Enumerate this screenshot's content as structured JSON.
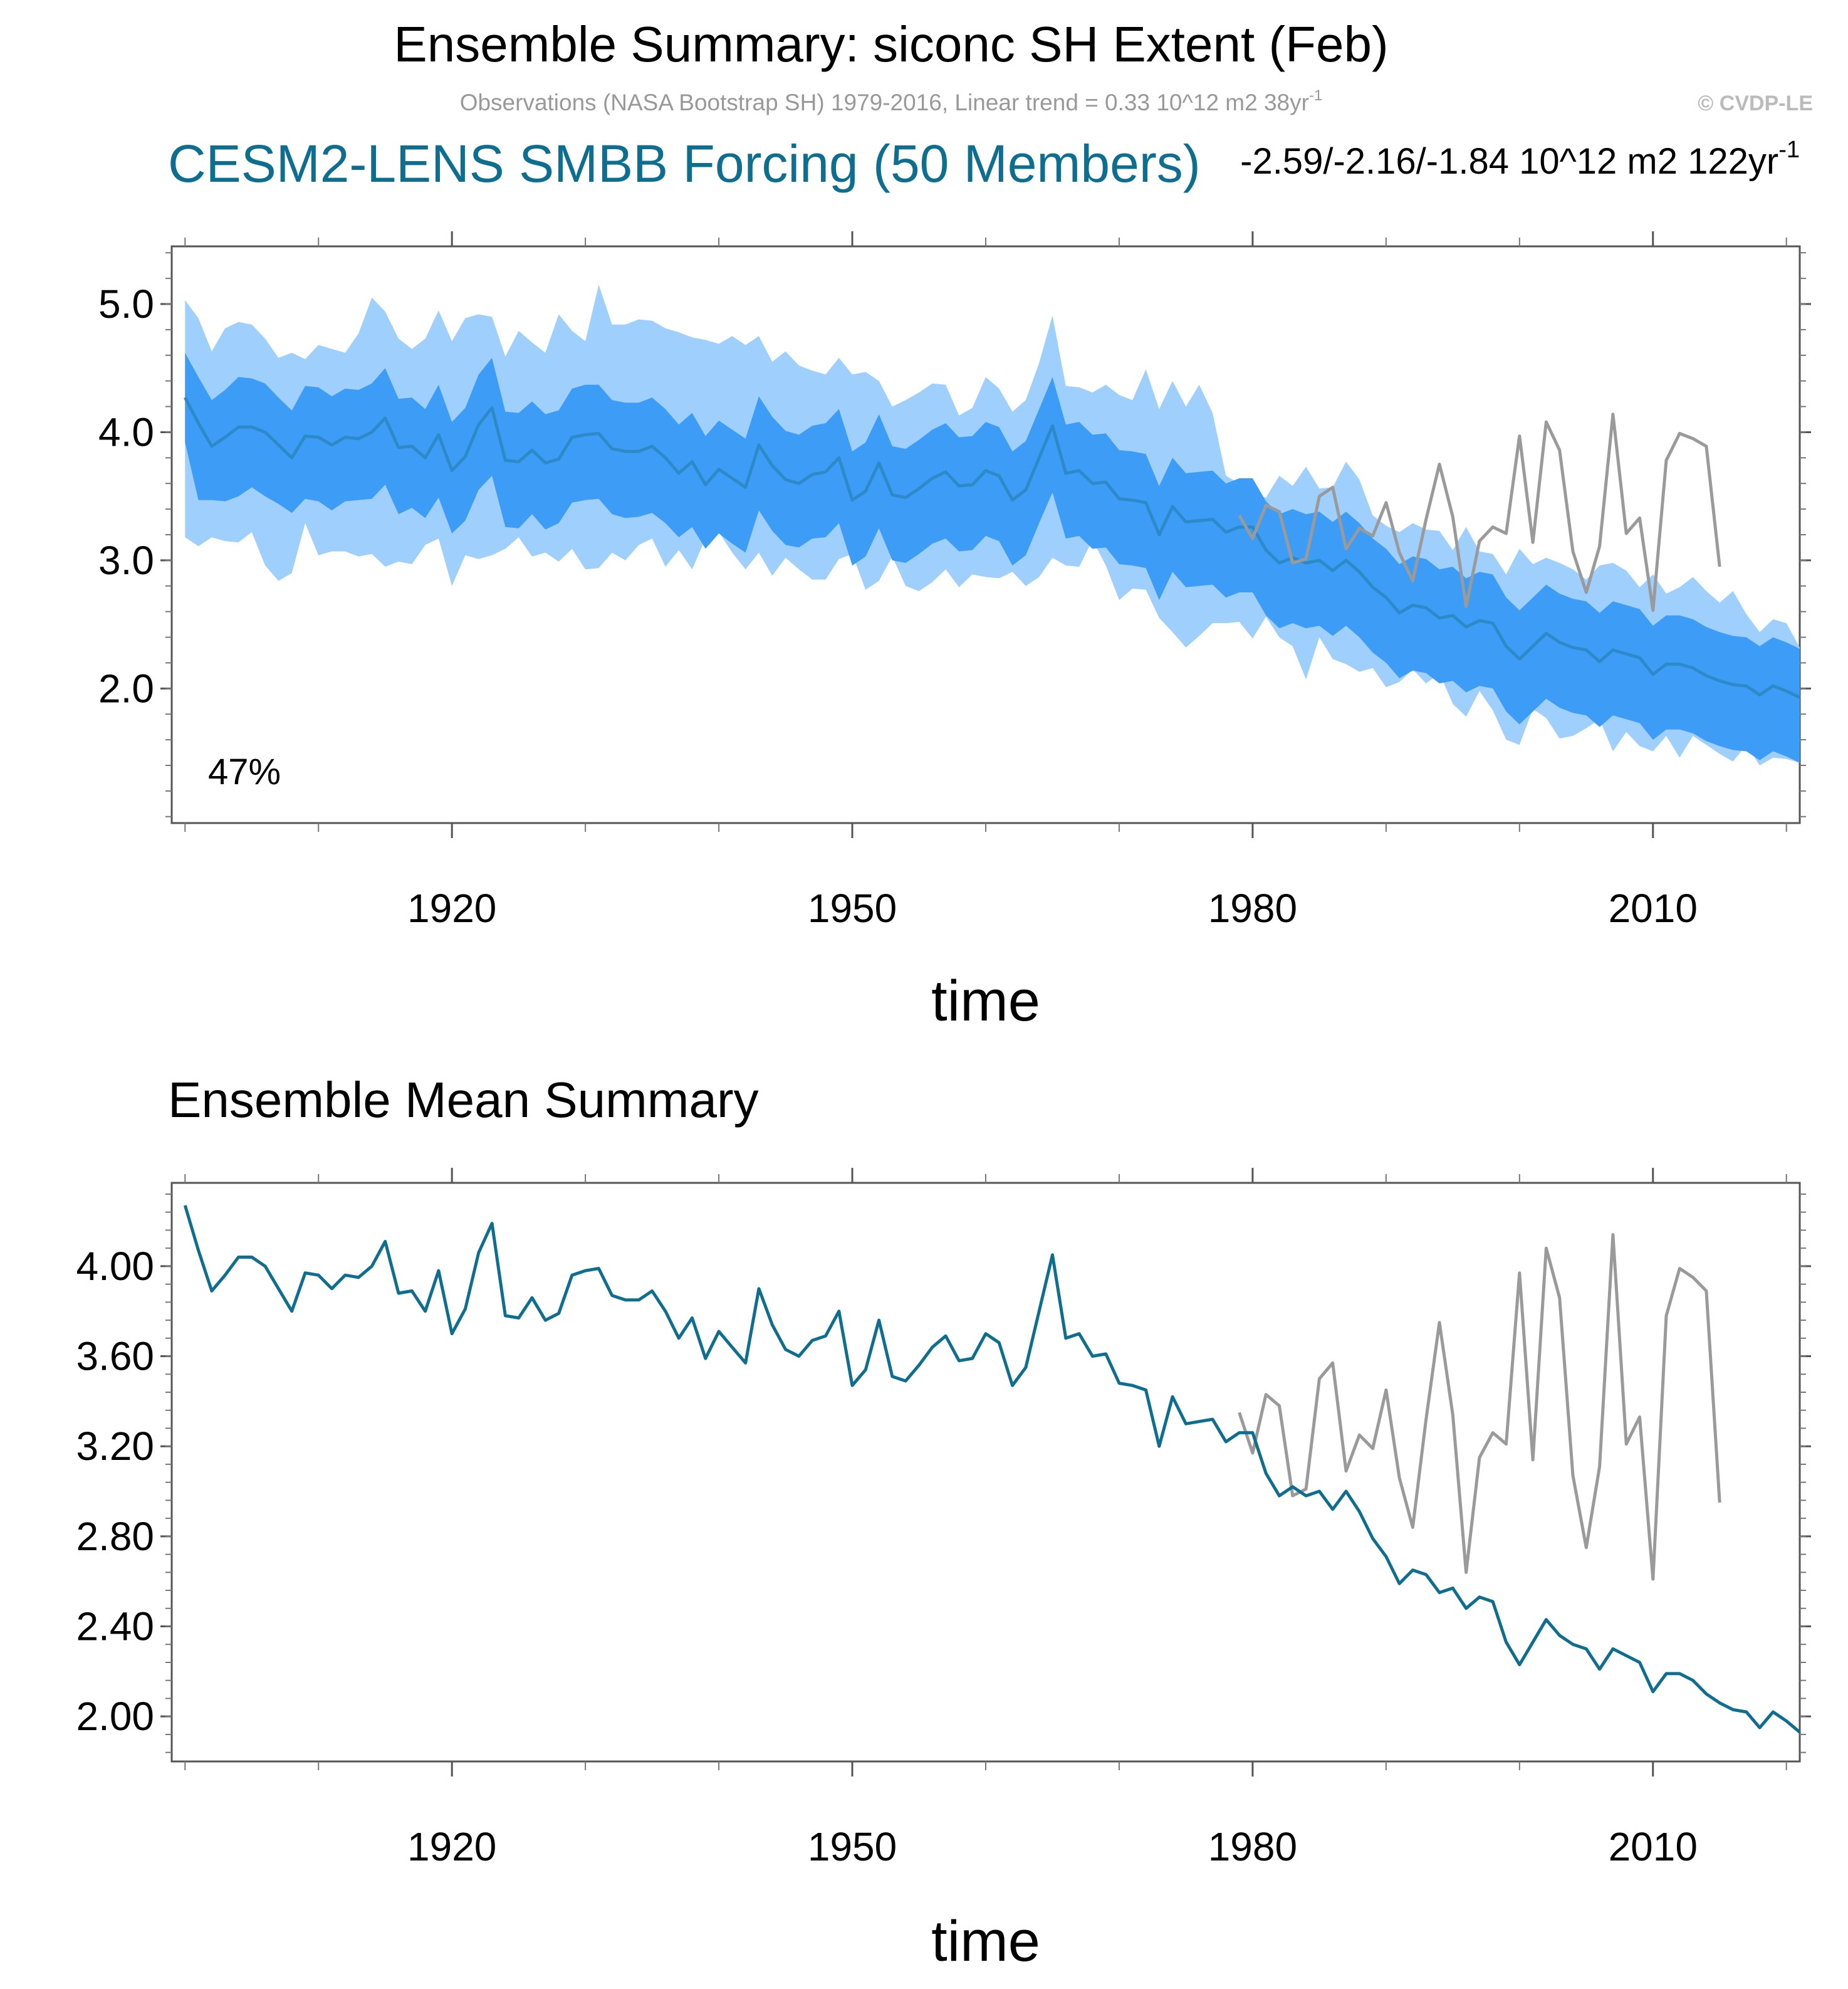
{
  "titles": {
    "main": "Ensemble Summary: siconc SH Extent (Feb)",
    "observations": "Observations (NASA Bootstrap SH) 1979-2016, Linear trend = 0.33 10^12 m2 38yr",
    "observations_sup": "-1",
    "copyright": "© CVDP-LE",
    "model": "CESM2-LENS SMBB Forcing (50 Members)",
    "trend": "-2.59/-2.16/-1.84 10^12 m2 122yr",
    "trend_sup": "-1",
    "lower": "Ensemble Mean Summary"
  },
  "colors": {
    "outer_band": "#9fcffc",
    "inner_band": "#3d9cf5",
    "ensemble_median": "#2d8ac9",
    "ensemble_mean": "#0d6e8f",
    "observations": "#9a9a9a"
  },
  "chart_data": [
    {
      "type": "area",
      "panel": "upper",
      "xlabel": "time",
      "xlim": [
        1899,
        2021
      ],
      "ylim": [
        0.95,
        5.45
      ],
      "yticks": [
        2.0,
        3.0,
        4.0,
        5.0
      ],
      "ytick_labels": [
        "2.0",
        "3.0",
        "4.0",
        "5.0"
      ],
      "xticks": [
        1920,
        1950,
        1980,
        2010
      ],
      "xtick_labels": [
        "1920",
        "1950",
        "1980",
        "2010"
      ],
      "grid": false,
      "annotation": "47%",
      "start_year": 1900,
      "series": [
        {
          "name": "ensemble_mean",
          "values": [
            4.27,
            4.07,
            3.89,
            3.96,
            4.04,
            4.04,
            4.0,
            3.9,
            3.8,
            3.97,
            3.96,
            3.9,
            3.96,
            3.95,
            4.0,
            4.11,
            3.88,
            3.89,
            3.8,
            3.98,
            3.7,
            3.81,
            4.06,
            4.19,
            3.78,
            3.77,
            3.86,
            3.76,
            3.79,
            3.96,
            3.98,
            3.99,
            3.87,
            3.85,
            3.85,
            3.89,
            3.8,
            3.68,
            3.77,
            3.59,
            3.71,
            3.64,
            3.57,
            3.9,
            3.74,
            3.63,
            3.6,
            3.67,
            3.69,
            3.8,
            3.47,
            3.54,
            3.76,
            3.51,
            3.49,
            3.56,
            3.64,
            3.69,
            3.58,
            3.59,
            3.7,
            3.66,
            3.47,
            3.55,
            3.8,
            4.05,
            3.68,
            3.7,
            3.6,
            3.61,
            3.48,
            3.47,
            3.45,
            3.2,
            3.42,
            3.3,
            3.31,
            3.32,
            3.22,
            3.26,
            3.26,
            3.08,
            2.98,
            3.02,
            2.98,
            3.0,
            2.92,
            3.0,
            2.91,
            2.79,
            2.71,
            2.59,
            2.65,
            2.63,
            2.55,
            2.57,
            2.48,
            2.53,
            2.51,
            2.33,
            2.23,
            2.33,
            2.43,
            2.36,
            2.32,
            2.3,
            2.21,
            2.3,
            2.27,
            2.24,
            2.11,
            2.19,
            2.19,
            2.16,
            2.1,
            2.06,
            2.03,
            2.02,
            1.95,
            2.02,
            1.98,
            1.93
          ]
        },
        {
          "name": "inner_range",
          "lower": [
            3.92,
            3.47,
            3.47,
            3.46,
            3.5,
            3.57,
            3.5,
            3.44,
            3.37,
            3.48,
            3.46,
            3.39,
            3.46,
            3.47,
            3.48,
            3.59,
            3.36,
            3.41,
            3.33,
            3.49,
            3.21,
            3.31,
            3.55,
            3.66,
            3.26,
            3.25,
            3.36,
            3.24,
            3.29,
            3.45,
            3.47,
            3.48,
            3.36,
            3.33,
            3.34,
            3.37,
            3.29,
            3.18,
            3.26,
            3.09,
            3.21,
            3.13,
            3.06,
            3.39,
            3.23,
            3.12,
            3.1,
            3.17,
            3.18,
            3.29,
            2.96,
            3.03,
            3.25,
            3.0,
            2.98,
            3.05,
            3.13,
            3.17,
            3.07,
            3.08,
            3.19,
            3.15,
            2.96,
            3.04,
            3.29,
            3.53,
            3.17,
            3.19,
            3.09,
            3.1,
            2.97,
            2.96,
            2.94,
            2.69,
            2.91,
            2.79,
            2.8,
            2.81,
            2.71,
            2.75,
            2.75,
            2.57,
            2.47,
            2.51,
            2.47,
            2.49,
            2.41,
            2.49,
            2.4,
            2.28,
            2.2,
            2.08,
            2.14,
            2.12,
            2.04,
            2.06,
            1.97,
            2.02,
            2.0,
            1.82,
            1.72,
            1.82,
            1.92,
            1.85,
            1.81,
            1.79,
            1.7,
            1.79,
            1.76,
            1.73,
            1.6,
            1.68,
            1.68,
            1.65,
            1.59,
            1.55,
            1.52,
            1.51,
            1.44,
            1.51,
            1.47,
            1.42
          ],
          "upper": [
            4.62,
            4.43,
            4.25,
            4.33,
            4.43,
            4.42,
            4.38,
            4.27,
            4.17,
            4.36,
            4.35,
            4.28,
            4.34,
            4.33,
            4.38,
            4.5,
            4.26,
            4.27,
            4.18,
            4.37,
            4.08,
            4.19,
            4.45,
            4.58,
            4.16,
            4.15,
            4.24,
            4.14,
            4.17,
            4.34,
            4.37,
            4.37,
            4.25,
            4.23,
            4.23,
            4.27,
            4.18,
            4.06,
            4.15,
            3.97,
            4.09,
            4.02,
            3.95,
            4.28,
            4.12,
            4.01,
            3.98,
            4.05,
            4.07,
            4.18,
            3.85,
            3.92,
            4.14,
            3.89,
            3.87,
            3.94,
            4.02,
            4.07,
            3.96,
            3.97,
            4.08,
            4.04,
            3.85,
            3.93,
            4.18,
            4.43,
            4.06,
            4.08,
            3.98,
            3.99,
            3.86,
            3.85,
            3.83,
            3.58,
            3.8,
            3.68,
            3.69,
            3.7,
            3.6,
            3.64,
            3.64,
            3.46,
            3.36,
            3.4,
            3.36,
            3.38,
            3.3,
            3.38,
            3.29,
            3.17,
            3.09,
            2.97,
            3.03,
            3.01,
            2.93,
            2.95,
            2.86,
            2.91,
            2.89,
            2.71,
            2.61,
            2.71,
            2.81,
            2.74,
            2.7,
            2.68,
            2.59,
            2.68,
            2.65,
            2.62,
            2.49,
            2.57,
            2.57,
            2.54,
            2.48,
            2.44,
            2.41,
            2.4,
            2.33,
            2.4,
            2.36,
            2.31
          ]
        },
        {
          "name": "outer_range",
          "lower": [
            3.18,
            3.11,
            3.18,
            3.15,
            3.14,
            3.22,
            2.96,
            2.84,
            2.9,
            3.29,
            3.04,
            3.07,
            3.07,
            3.03,
            3.05,
            2.95,
            2.99,
            2.97,
            3.12,
            3.17,
            2.8,
            3.04,
            3.01,
            3.04,
            3.09,
            3.18,
            3.03,
            3.06,
            2.99,
            3.09,
            2.93,
            2.94,
            3.06,
            3.0,
            3.12,
            3.17,
            2.95,
            3.08,
            2.93,
            3.17,
            3.22,
            3.06,
            2.93,
            3.06,
            2.88,
            3.02,
            2.93,
            2.85,
            2.85,
            3.01,
            3.05,
            2.77,
            2.84,
            3.03,
            2.8,
            2.76,
            2.83,
            2.93,
            2.79,
            2.89,
            2.87,
            2.86,
            2.91,
            2.8,
            2.87,
            3.02,
            2.96,
            2.95,
            3.16,
            2.96,
            2.69,
            2.78,
            2.77,
            2.55,
            2.44,
            2.32,
            2.41,
            2.51,
            2.51,
            2.52,
            2.39,
            2.56,
            2.4,
            2.33,
            2.07,
            2.4,
            2.23,
            2.19,
            2.13,
            2.16,
            2.01,
            2.05,
            2.15,
            2.04,
            2.12,
            1.88,
            1.78,
            1.98,
            1.83,
            1.6,
            1.56,
            1.84,
            1.77,
            1.61,
            1.63,
            1.69,
            1.76,
            1.51,
            1.66,
            1.55,
            1.51,
            1.63,
            1.46,
            1.63,
            1.56,
            1.49,
            1.43,
            1.56,
            1.4,
            1.46,
            1.45,
            1.42
          ],
          "upper": [
            5.03,
            4.89,
            4.63,
            4.81,
            4.86,
            4.84,
            4.73,
            4.58,
            4.62,
            4.57,
            4.68,
            4.65,
            4.62,
            4.77,
            5.05,
            4.94,
            4.73,
            4.65,
            4.73,
            4.95,
            4.71,
            4.89,
            4.92,
            4.9,
            4.59,
            4.79,
            4.7,
            4.62,
            4.92,
            4.79,
            4.71,
            5.15,
            4.84,
            4.84,
            4.88,
            4.87,
            4.81,
            4.78,
            4.74,
            4.72,
            4.69,
            4.75,
            4.68,
            4.75,
            4.55,
            4.63,
            4.52,
            4.48,
            4.45,
            4.58,
            4.45,
            4.47,
            4.4,
            4.2,
            4.25,
            4.31,
            4.38,
            4.37,
            4.13,
            4.19,
            4.43,
            4.34,
            4.16,
            4.25,
            4.54,
            4.91,
            4.36,
            4.35,
            4.31,
            4.37,
            4.29,
            4.25,
            4.49,
            4.18,
            4.4,
            4.2,
            4.37,
            4.15,
            3.66,
            3.6,
            3.51,
            3.49,
            3.66,
            3.58,
            3.73,
            3.56,
            3.57,
            3.77,
            3.63,
            3.35,
            3.27,
            3.22,
            3.29,
            3.24,
            3.23,
            3.08,
            3.26,
            3.07,
            3.05,
            2.89,
            3.09,
            2.97,
            3.02,
            2.98,
            2.93,
            2.85,
            2.96,
            2.98,
            2.92,
            2.79,
            2.89,
            2.74,
            2.79,
            2.87,
            2.76,
            2.67,
            2.76,
            2.58,
            2.44,
            2.54,
            2.51,
            2.32
          ]
        },
        {
          "name": "observations",
          "start_year": 1979,
          "values": [
            3.35,
            3.17,
            3.43,
            3.38,
            2.98,
            3.01,
            3.5,
            3.57,
            3.09,
            3.25,
            3.19,
            3.45,
            3.06,
            2.84,
            3.32,
            3.75,
            3.34,
            2.64,
            3.15,
            3.26,
            3.21,
            3.97,
            3.14,
            4.08,
            3.86,
            3.07,
            2.75,
            3.11,
            4.14,
            3.21,
            3.33,
            2.61,
            3.78,
            3.99,
            3.95,
            3.89,
            2.95
          ]
        }
      ]
    },
    {
      "type": "line",
      "panel": "lower",
      "xlabel": "time",
      "xlim": [
        1899,
        2021
      ],
      "ylim": [
        1.8,
        4.37
      ],
      "yticks": [
        2.0,
        2.4,
        2.8,
        3.2,
        3.6,
        4.0
      ],
      "ytick_labels": [
        "2.00",
        "2.40",
        "2.80",
        "3.20",
        "3.60",
        "4.00"
      ],
      "xticks": [
        1920,
        1950,
        1980,
        2010
      ],
      "xtick_labels": [
        "1920",
        "1950",
        "1980",
        "2010"
      ],
      "grid": false,
      "start_year": 1900,
      "series": [
        {
          "name": "ensemble_mean",
          "values": [
            4.27,
            4.07,
            3.89,
            3.96,
            4.04,
            4.04,
            4.0,
            3.9,
            3.8,
            3.97,
            3.96,
            3.9,
            3.96,
            3.95,
            4.0,
            4.11,
            3.88,
            3.89,
            3.8,
            3.98,
            3.7,
            3.81,
            4.06,
            4.19,
            3.78,
            3.77,
            3.86,
            3.76,
            3.79,
            3.96,
            3.98,
            3.99,
            3.87,
            3.85,
            3.85,
            3.89,
            3.8,
            3.68,
            3.77,
            3.59,
            3.71,
            3.64,
            3.57,
            3.9,
            3.74,
            3.63,
            3.6,
            3.67,
            3.69,
            3.8,
            3.47,
            3.54,
            3.76,
            3.51,
            3.49,
            3.56,
            3.64,
            3.69,
            3.58,
            3.59,
            3.7,
            3.66,
            3.47,
            3.55,
            3.8,
            4.05,
            3.68,
            3.7,
            3.6,
            3.61,
            3.48,
            3.47,
            3.45,
            3.2,
            3.42,
            3.3,
            3.31,
            3.32,
            3.22,
            3.26,
            3.26,
            3.08,
            2.98,
            3.02,
            2.98,
            3.0,
            2.92,
            3.0,
            2.91,
            2.79,
            2.71,
            2.59,
            2.65,
            2.63,
            2.55,
            2.57,
            2.48,
            2.53,
            2.51,
            2.33,
            2.23,
            2.33,
            2.43,
            2.36,
            2.32,
            2.3,
            2.21,
            2.3,
            2.27,
            2.24,
            2.11,
            2.19,
            2.19,
            2.16,
            2.1,
            2.06,
            2.03,
            2.02,
            1.95,
            2.02,
            1.98,
            1.93
          ]
        },
        {
          "name": "observations",
          "start_year": 1979,
          "values": [
            3.35,
            3.17,
            3.43,
            3.38,
            2.98,
            3.01,
            3.5,
            3.57,
            3.09,
            3.25,
            3.19,
            3.45,
            3.06,
            2.84,
            3.32,
            3.75,
            3.34,
            2.64,
            3.15,
            3.26,
            3.21,
            3.97,
            3.14,
            4.08,
            3.86,
            3.07,
            2.75,
            3.11,
            4.14,
            3.21,
            3.33,
            2.61,
            3.78,
            3.99,
            3.95,
            3.89,
            2.95
          ]
        }
      ]
    }
  ]
}
